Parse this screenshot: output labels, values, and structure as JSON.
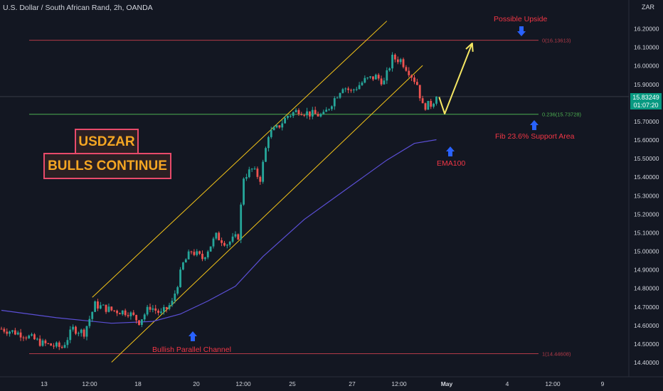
{
  "header": {
    "title": "U.S. Dollar / South African Rand, 2h, OANDA",
    "currency": "ZAR"
  },
  "price_badge": {
    "price": "15.83249",
    "countdown": "01:07:20"
  },
  "headline": {
    "line1": "USDZAR",
    "line2": "BULLS CONTINUE"
  },
  "annotations": {
    "possible_upside": "Possible Upside",
    "fib_support": "Fib 23.6% Support Area",
    "ema": "EMA100",
    "channel": "Bullish Parallel Channel"
  },
  "colors": {
    "background": "#131722",
    "up_candle": "#26a69a",
    "down_candle": "#ef5350",
    "ema": "#5b4fd6",
    "channel": "#f5c518",
    "arrow": "#f5e663",
    "fib_0": "#b23a48",
    "fib_236": "#4caf50",
    "fib_1": "#b23a48",
    "marker_arrow": "#2962ff",
    "annotation_text": "#f23645"
  },
  "chart_data": {
    "type": "candlestick",
    "symbol": "USDZAR",
    "timeframe": "2h",
    "x_tick_labels": [
      "13",
      "12:00",
      "18",
      "20",
      "12:00",
      "25",
      "27",
      "12:00",
      "May",
      "4",
      "12:00",
      "9"
    ],
    "y_tick_labels": [
      "16.20000",
      "16.10000",
      "16.00000",
      "15.90000",
      "15.80000",
      "15.70000",
      "15.60000",
      "15.50000",
      "15.40000",
      "15.30000",
      "15.20000",
      "15.10000",
      "15.00000",
      "14.90000",
      "14.80000",
      "14.70000",
      "14.60000",
      "14.50000",
      "14.40000"
    ],
    "ylim": [
      14.38,
      16.24
    ],
    "current_price": 15.83249,
    "fib_levels": [
      {
        "label": "0(16.13613)",
        "value": 16.13613
      },
      {
        "label": "0.236(15.73728)",
        "value": 15.73728
      },
      {
        "label": "1(14.44608)",
        "value": 14.44608
      }
    ],
    "price_path": [
      {
        "bar": 0,
        "close": 14.58
      },
      {
        "bar": 8,
        "close": 14.55
      },
      {
        "bar": 15,
        "close": 14.5
      },
      {
        "bar": 22,
        "close": 14.48
      },
      {
        "bar": 26,
        "close": 14.58
      },
      {
        "bar": 30,
        "close": 14.56
      },
      {
        "bar": 34,
        "close": 14.71
      },
      {
        "bar": 40,
        "close": 14.68
      },
      {
        "bar": 46,
        "close": 14.67
      },
      {
        "bar": 50,
        "close": 14.62
      },
      {
        "bar": 54,
        "close": 14.7
      },
      {
        "bar": 58,
        "close": 14.66
      },
      {
        "bar": 62,
        "close": 14.72
      },
      {
        "bar": 66,
        "close": 14.93
      },
      {
        "bar": 69,
        "close": 15.0
      },
      {
        "bar": 73,
        "close": 14.96
      },
      {
        "bar": 78,
        "close": 15.08
      },
      {
        "bar": 82,
        "close": 15.04
      },
      {
        "bar": 86,
        "close": 15.08
      },
      {
        "bar": 88,
        "close": 15.4
      },
      {
        "bar": 91,
        "close": 15.44
      },
      {
        "bar": 94,
        "close": 15.39
      },
      {
        "bar": 97,
        "close": 15.63
      },
      {
        "bar": 100,
        "close": 15.66
      },
      {
        "bar": 104,
        "close": 15.73
      },
      {
        "bar": 108,
        "close": 15.76
      },
      {
        "bar": 112,
        "close": 15.74
      },
      {
        "bar": 117,
        "close": 15.73
      },
      {
        "bar": 120,
        "close": 15.8
      },
      {
        "bar": 124,
        "close": 15.89
      },
      {
        "bar": 127,
        "close": 15.86
      },
      {
        "bar": 132,
        "close": 15.92
      },
      {
        "bar": 136,
        "close": 15.94
      },
      {
        "bar": 139,
        "close": 15.91
      },
      {
        "bar": 142,
        "close": 16.04
      },
      {
        "bar": 145,
        "close": 16.03
      },
      {
        "bar": 148,
        "close": 15.97
      },
      {
        "bar": 151,
        "close": 15.9
      },
      {
        "bar": 153,
        "close": 15.78
      },
      {
        "bar": 156,
        "close": 15.79
      },
      {
        "bar": 158,
        "close": 15.83249
      }
    ],
    "ema100": [
      {
        "bar": 0,
        "value": 14.68
      },
      {
        "bar": 20,
        "value": 14.64
      },
      {
        "bar": 40,
        "value": 14.61
      },
      {
        "bar": 55,
        "value": 14.62
      },
      {
        "bar": 65,
        "value": 14.66
      },
      {
        "bar": 75,
        "value": 14.73
      },
      {
        "bar": 85,
        "value": 14.81
      },
      {
        "bar": 95,
        "value": 14.97
      },
      {
        "bar": 110,
        "value": 15.17
      },
      {
        "bar": 125,
        "value": 15.33
      },
      {
        "bar": 140,
        "value": 15.49
      },
      {
        "bar": 150,
        "value": 15.58
      },
      {
        "bar": 158,
        "value": 15.6
      }
    ],
    "channel": {
      "upper": [
        {
          "bar": 33,
          "value": 14.75
        },
        {
          "bar": 140,
          "value": 16.24
        }
      ],
      "lower": [
        {
          "bar": 40,
          "value": 14.4
        },
        {
          "bar": 153,
          "value": 16.0
        }
      ]
    },
    "projection": [
      {
        "bar": 159,
        "value": 15.83
      },
      {
        "bar": 161,
        "value": 15.74
      },
      {
        "bar": 171,
        "value": 16.12
      }
    ]
  }
}
